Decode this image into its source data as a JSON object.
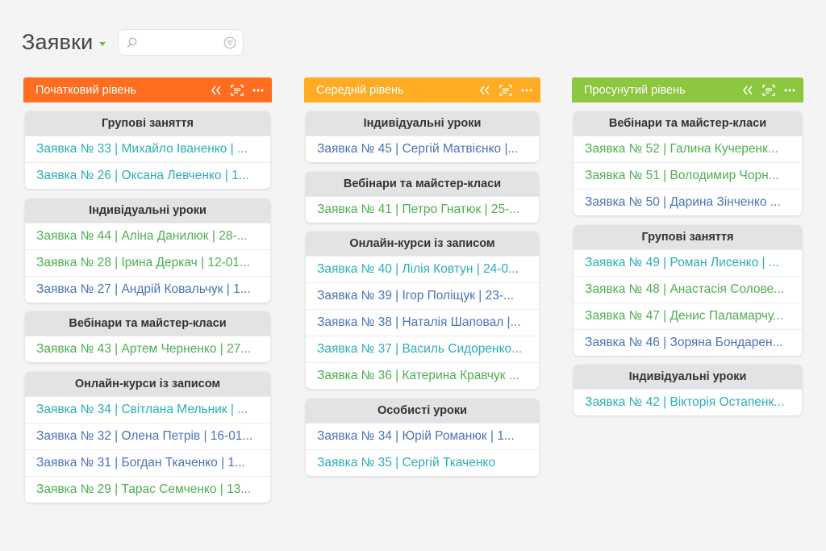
{
  "page": {
    "title": "Заявки",
    "search_placeholder": ""
  },
  "colors": {
    "teal": "#2aaeb5",
    "green": "#4caf50",
    "blue": "#4a74b5"
  },
  "columns": [
    {
      "title": "Початковий рівень",
      "color": "#ff6d1e",
      "groups": [
        {
          "title": "Групові заняття",
          "cards": [
            {
              "text": "Заявка № 33 | Михайло Іваненко | ...",
              "color": "teal"
            },
            {
              "text": "Заявка № 26 | Оксана Левченко | 1...",
              "color": "teal"
            }
          ]
        },
        {
          "title": "Індивідуальні уроки",
          "cards": [
            {
              "text": "Заявка № 44 | Аліна Данилюк | 28-...",
              "color": "green"
            },
            {
              "text": "Заявка № 28 | Ірина Деркач | 12-01...",
              "color": "green"
            },
            {
              "text": "Заявка № 27 | Андрій Ковальчук | 1...",
              "color": "blue"
            }
          ]
        },
        {
          "title": "Вебінари та майстер-класи",
          "cards": [
            {
              "text": "Заявка № 43 | Артем Черненко | 27...",
              "color": "green"
            }
          ]
        },
        {
          "title": "Онлайн-курси із записом",
          "cards": [
            {
              "text": "Заявка № 34 | Світлана Мельник | ...",
              "color": "teal"
            },
            {
              "text": "Заявка № 32 | Олена Петрів | 16-01...",
              "color": "blue"
            },
            {
              "text": "Заявка № 31 | Богдан Ткаченко | 1...",
              "color": "blue"
            },
            {
              "text": "Заявка № 29 | Тарас Семченко | 13...",
              "color": "green"
            }
          ]
        }
      ]
    },
    {
      "title": "Середній рівень",
      "color": "#ffac24",
      "groups": [
        {
          "title": "Індивідуальні уроки",
          "cards": [
            {
              "text": "Заявка № 45 | Сергій Матвієнко |...",
              "color": "blue"
            }
          ]
        },
        {
          "title": "Вебінари та майстер-класи",
          "cards": [
            {
              "text": "Заявка № 41 | Петро Гнатюк | 25-...",
              "color": "green"
            }
          ]
        },
        {
          "title": "Онлайн-курси із записом",
          "cards": [
            {
              "text": "Заявка № 40 | Лілія Ковтун | 24-0...",
              "color": "teal"
            },
            {
              "text": "Заявка № 39 | Ігор Поліщук | 23-...",
              "color": "blue"
            },
            {
              "text": "Заявка № 38 | Наталія Шаповал |...",
              "color": "blue"
            },
            {
              "text": "Заявка № 37 | Василь Сидоренко...",
              "color": "teal"
            },
            {
              "text": "Заявка № 36 | Катерина Кравчук ...",
              "color": "green"
            }
          ]
        },
        {
          "title": "Особисті уроки",
          "cards": [
            {
              "text": "Заявка № 34 | Юрій Романюк | 1...",
              "color": "blue"
            },
            {
              "text": "Заявка № 35 | Сергій Ткаченко",
              "color": "teal"
            }
          ]
        }
      ]
    },
    {
      "title": "Просунутий рівень",
      "color": "#8dc63f",
      "groups": [
        {
          "title": "Вебінари та майстер-класи",
          "cards": [
            {
              "text": "Заявка № 52 | Галина Кучеренк...",
              "color": "green"
            },
            {
              "text": "Заявка № 51 | Володимир Чорн...",
              "color": "green"
            },
            {
              "text": "Заявка № 50 | Дарина Зінченко ...",
              "color": "blue"
            }
          ]
        },
        {
          "title": "Групові заняття",
          "cards": [
            {
              "text": "Заявка № 49 | Роман Лисенко | ...",
              "color": "teal"
            },
            {
              "text": "Заявка № 48 | Анастасія Солове...",
              "color": "green"
            },
            {
              "text": "Заявка № 47 | Денис Паламарчу...",
              "color": "green"
            },
            {
              "text": "Заявка № 46 | Зоряна Бондарен...",
              "color": "blue"
            }
          ]
        },
        {
          "title": "Індивідуальні уроки",
          "cards": [
            {
              "text": "Заявка № 42 | Вікторія Остапенк...",
              "color": "teal"
            }
          ]
        }
      ]
    }
  ]
}
